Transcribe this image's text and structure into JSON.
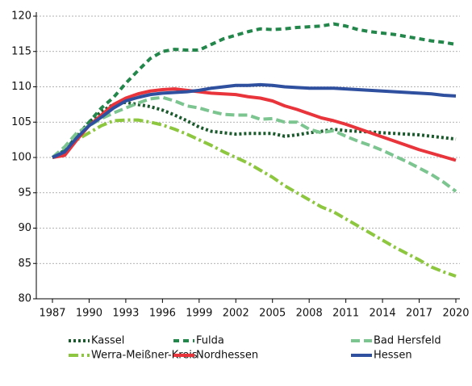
{
  "chart_data": {
    "type": "line",
    "x": [
      1987,
      1988,
      1989,
      1990,
      1991,
      1992,
      1993,
      1994,
      1995,
      1996,
      1997,
      1998,
      1999,
      2000,
      2001,
      2002,
      2003,
      2004,
      2005,
      2006,
      2007,
      2008,
      2009,
      2010,
      2011,
      2012,
      2013,
      2014,
      2015,
      2016,
      2017,
      2018,
      2019,
      2020
    ],
    "xlim": [
      1987,
      2020
    ],
    "xticks": [
      1987,
      1990,
      1993,
      1996,
      1999,
      2002,
      2005,
      2008,
      2011,
      2014,
      2017,
      2020
    ],
    "ylim": [
      80,
      120
    ],
    "yticks": [
      80,
      85,
      90,
      95,
      100,
      105,
      110,
      115,
      120
    ],
    "grid": true,
    "series": [
      {
        "name": "Kassel",
        "color": "#1b5a2c",
        "dash": "dotted",
        "values": [
          100,
          101,
          103,
          105,
          106.5,
          107.5,
          107.8,
          107.5,
          107.2,
          106.7,
          106,
          105.2,
          104.3,
          103.7,
          103.5,
          103.3,
          103.4,
          103.4,
          103.4,
          103,
          103.2,
          103.5,
          103.7,
          104,
          103.8,
          103.7,
          103.6,
          103.5,
          103.4,
          103.3,
          103.2,
          103,
          102.8,
          102.6
        ]
      },
      {
        "name": "Fulda",
        "color": "#23864a",
        "dash": "dashed",
        "values": [
          100,
          101,
          103,
          105,
          107,
          108.5,
          110.5,
          112.3,
          114,
          115,
          115.3,
          115.2,
          115.2,
          116,
          116.8,
          117.3,
          117.8,
          118.2,
          118.1,
          118.2,
          118.4,
          118.5,
          118.6,
          118.9,
          118.6,
          118.1,
          117.8,
          117.6,
          117.4,
          117.1,
          116.8,
          116.5,
          116.3,
          116
        ]
      },
      {
        "name": "Bad Hersfeld",
        "color": "#7cc590",
        "dash": "long-dashed",
        "values": [
          100,
          101.5,
          103.5,
          104.5,
          105.5,
          106.3,
          107,
          107.7,
          108.3,
          108.5,
          108,
          107.3,
          107,
          106.5,
          106.1,
          106,
          106,
          105.4,
          105.5,
          105,
          105,
          104,
          103.5,
          103.8,
          103,
          102.3,
          101.7,
          101,
          100.2,
          99.4,
          98.5,
          97.6,
          96.5,
          95.2
        ]
      },
      {
        "name": "Werra-Meißner-Kreis",
        "color": "#8dc63f",
        "dash": "dash-dot",
        "values": [
          100,
          100.5,
          102.5,
          103.5,
          104.5,
          105.2,
          105.3,
          105.3,
          105,
          104.6,
          104,
          103.3,
          102.5,
          101.7,
          100.8,
          100,
          99.2,
          98.2,
          97.2,
          96,
          95,
          94,
          93,
          92.3,
          91.3,
          90.3,
          89.3,
          88.3,
          87.3,
          86.4,
          85.5,
          84.5,
          83.8,
          83.2
        ]
      },
      {
        "name": "Nordhessen",
        "color": "#e8343a",
        "dash": "solid",
        "values": [
          100,
          100.3,
          102.5,
          104.5,
          106,
          107.5,
          108.4,
          109,
          109.4,
          109.6,
          109.7,
          109.5,
          109.3,
          109.1,
          109,
          108.9,
          108.6,
          108.4,
          108,
          107.3,
          106.8,
          106.2,
          105.6,
          105.2,
          104.7,
          104.1,
          103.5,
          102.9,
          102.3,
          101.7,
          101.1,
          100.6,
          100.1,
          99.6
        ]
      },
      {
        "name": "Hessen",
        "color": "#2f4f9f",
        "dash": "solid",
        "values": [
          100,
          100.8,
          102.8,
          104.5,
          105.7,
          107,
          108,
          108.5,
          108.9,
          109.1,
          109.2,
          109.3,
          109.5,
          109.8,
          110,
          110.2,
          110.2,
          110.3,
          110.2,
          110,
          109.9,
          109.8,
          109.8,
          109.8,
          109.7,
          109.6,
          109.5,
          109.4,
          109.3,
          109.2,
          109.1,
          109,
          108.8,
          108.7
        ]
      }
    ]
  }
}
